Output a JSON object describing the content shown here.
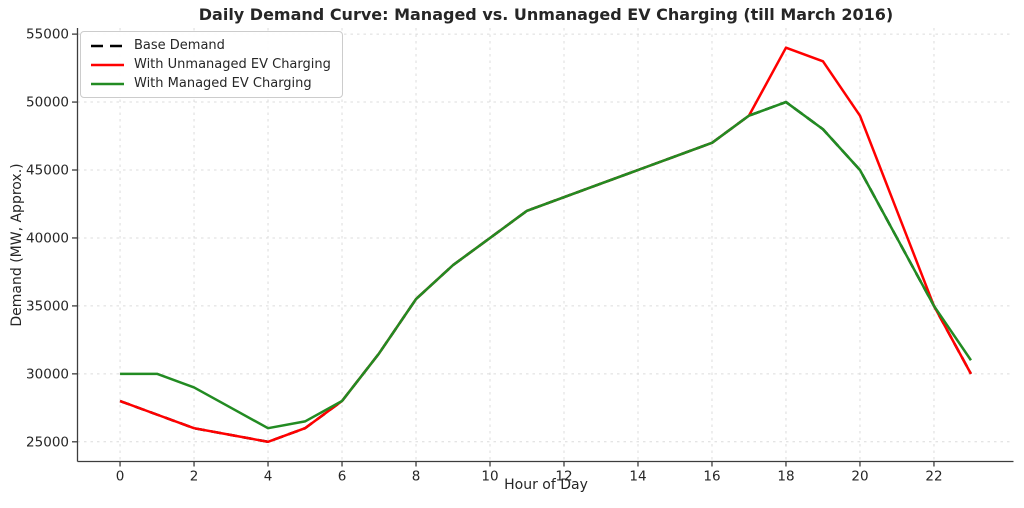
{
  "chart_data": {
    "type": "line",
    "title": "Daily Demand Curve: Managed vs. Unmanaged EV Charging (till March 2016)",
    "xlabel": "Hour of Day",
    "ylabel": "Demand (MW, Approx.)",
    "x": [
      0,
      1,
      2,
      3,
      4,
      5,
      6,
      7,
      8,
      9,
      10,
      11,
      12,
      13,
      14,
      15,
      16,
      17,
      18,
      19,
      20,
      21,
      22,
      23
    ],
    "series": [
      {
        "name": "Base Demand",
        "color": "#000000",
        "style": "dashed",
        "values": [
          28000,
          27000,
          26000,
          25500,
          25000,
          26000,
          28000,
          31500,
          35500,
          38000,
          40000,
          42000,
          43000,
          44000,
          45000,
          46000,
          47000,
          49000,
          50000,
          48000,
          45000,
          40000,
          35000,
          30000
        ]
      },
      {
        "name": "With Unmanaged EV Charging",
        "color": "#ff0000",
        "style": "solid",
        "values": [
          28000,
          27000,
          26000,
          25500,
          25000,
          26000,
          28000,
          31500,
          35500,
          38000,
          40000,
          42000,
          43000,
          44000,
          45000,
          46000,
          47000,
          49000,
          54000,
          53000,
          49000,
          42000,
          35000,
          30000
        ]
      },
      {
        "name": "With Managed EV Charging",
        "color": "#228B22",
        "style": "solid",
        "values": [
          30000,
          30000,
          29000,
          27500,
          26000,
          26500,
          28000,
          31500,
          35500,
          38000,
          40000,
          42000,
          43000,
          44000,
          45000,
          46000,
          47000,
          49000,
          50000,
          48000,
          45000,
          40000,
          35000,
          31000
        ]
      }
    ],
    "xlim": [
      -1.15,
      24.15
    ],
    "ylim": [
      23550,
      55450
    ],
    "xticks": [
      0,
      2,
      4,
      6,
      8,
      10,
      12,
      14,
      16,
      18,
      20,
      22
    ],
    "yticks": [
      25000,
      30000,
      35000,
      40000,
      45000,
      50000,
      55000
    ],
    "grid": true,
    "legend_position": "upper left",
    "colors": {
      "grid": "#dcdcdc",
      "spine": "#3d3d3d",
      "text": "#262626",
      "background": "#ffffff"
    }
  }
}
